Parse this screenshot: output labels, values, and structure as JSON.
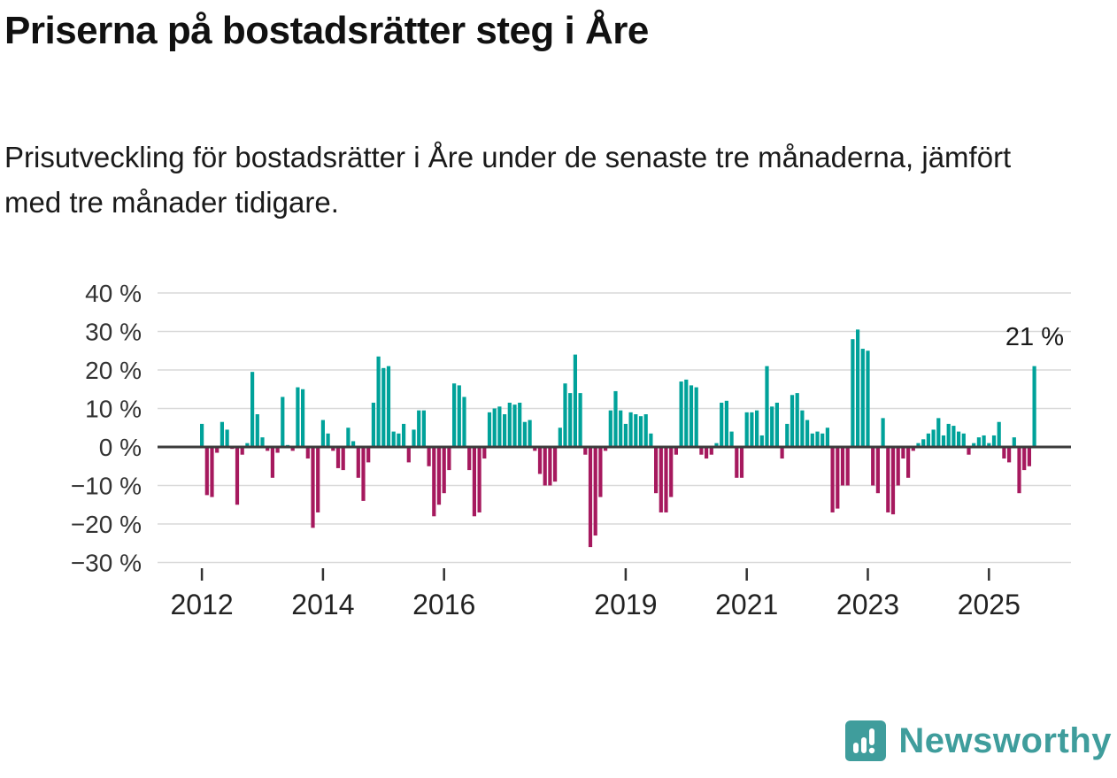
{
  "header": {
    "title": "Priserna på bostadsrätter steg i Åre",
    "subtitle": "Prisutveckling för bostadsrätter i Åre under de senaste tre månaderna, jämfört med tre månader tidigare."
  },
  "chart_data": {
    "type": "bar",
    "title": "Priserna på bostadsrätter steg i Åre",
    "subtitle": "Prisutveckling för bostadsrätter i Åre under de senaste tre månaderna, jämfört med tre månader tidigare.",
    "unit": "%",
    "start_year": 2012,
    "start_month": 1,
    "values": [
      6,
      -12.5,
      -13,
      -1.5,
      6.5,
      4.5,
      -0.5,
      -15,
      -2,
      1,
      19.5,
      8.5,
      2.5,
      -1,
      -8,
      -1.5,
      13,
      0.5,
      -1,
      15.5,
      15,
      -3,
      -21,
      -17,
      7,
      3.5,
      -1,
      -5.5,
      -6,
      5,
      1.5,
      -8,
      -14,
      -4,
      11.5,
      23.5,
      20.5,
      21,
      4,
      3.5,
      6,
      -4,
      4.5,
      9.5,
      9.5,
      -5,
      -18,
      -15,
      -12,
      -6,
      16.5,
      16,
      13,
      -6,
      -18,
      -17,
      -3,
      9,
      10,
      10.5,
      8.5,
      11.5,
      11,
      11.5,
      6.5,
      7,
      -1,
      -7,
      -10,
      -10,
      -9,
      5,
      16.5,
      14,
      24,
      14,
      -2,
      -26,
      -23,
      -13,
      -1,
      9.5,
      14.5,
      9.5,
      6,
      9,
      8.5,
      8,
      8.5,
      3.5,
      -12,
      -17,
      -17,
      -13,
      -2,
      17,
      17.5,
      16,
      15.5,
      -2,
      -3,
      -2,
      1,
      11.5,
      12,
      4,
      -8,
      -8,
      9,
      9,
      9.5,
      3,
      21,
      10.5,
      11.5,
      -3,
      6,
      13.5,
      14,
      9.5,
      7,
      3.5,
      4,
      3.5,
      5,
      -17,
      -16,
      -10,
      -10,
      28,
      30.5,
      25.5,
      25,
      -10,
      -12,
      7.5,
      -17,
      -17.5,
      -10,
      -3,
      -8,
      -1,
      1,
      2,
      3.5,
      4.5,
      7.5,
      3,
      6,
      5.5,
      4,
      3.5,
      -2,
      1,
      2.5,
      3,
      1,
      3,
      6.5,
      -3,
      -4,
      2.5,
      -12,
      -6,
      -5,
      21
    ],
    "ylim": [
      -30,
      40
    ],
    "ytick_values": [
      40,
      30,
      20,
      10,
      0,
      -10,
      -20,
      -30
    ],
    "ytick_labels": [
      "40 %",
      "30 %",
      "20 %",
      "10 %",
      "0 %",
      "−10 %",
      "−20 %",
      "−30 %"
    ],
    "xtick_years": [
      2012,
      2014,
      2016,
      2019,
      2021,
      2023,
      2025
    ],
    "annotation": {
      "text": "21 %",
      "value": 21
    },
    "positive_color": "#00a29a",
    "negative_color": "#a6195e",
    "grid_color": "#d9d9d9",
    "zero_line_color": "#3c3c3c",
    "axis_text_color": "#333333",
    "grid": true,
    "legend": false
  },
  "footer": {
    "brand": "Newsworthy",
    "brand_color": "#3f9d9c"
  }
}
